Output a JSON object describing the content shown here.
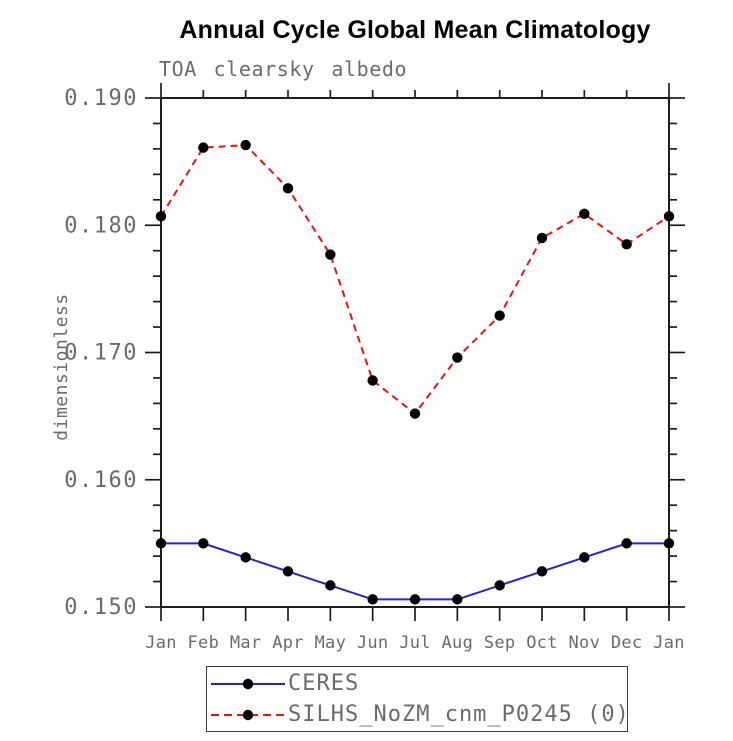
{
  "chart_data": {
    "type": "line",
    "title": "Annual Cycle Global Mean Climatology",
    "subtitle": "TOA clearsky albedo",
    "xlabel": "",
    "ylabel": "dimensionless",
    "categories": [
      "Jan",
      "Feb",
      "Mar",
      "Apr",
      "May",
      "Jun",
      "Jul",
      "Aug",
      "Sep",
      "Oct",
      "Nov",
      "Dec",
      "Jan"
    ],
    "ylim": [
      0.15,
      0.19
    ],
    "yticks": [
      0.15,
      0.16,
      0.17,
      0.18,
      0.19
    ],
    "ytick_labels": [
      "0.150",
      "0.160",
      "0.170",
      "0.180",
      "0.190"
    ],
    "yticks_minor": [
      0.152,
      0.154,
      0.156,
      0.158,
      0.162,
      0.164,
      0.166,
      0.168,
      0.172,
      0.174,
      0.176,
      0.178,
      0.182,
      0.184,
      0.186,
      0.188
    ],
    "grid": false,
    "legend_position": "bottom",
    "axis_color": "#1c1c1c",
    "label_color": "#6b6b6b",
    "series": [
      {
        "name": "CERES",
        "color": "#2222dd",
        "line_style": "solid",
        "marker": "circle",
        "marker_color": "#000000",
        "values": [
          0.155,
          0.155,
          0.1539,
          0.1528,
          0.1517,
          0.1506,
          0.1506,
          0.1506,
          0.1517,
          0.1528,
          0.1539,
          0.155,
          0.155
        ]
      },
      {
        "name": "SILHS_NoZM_cnm_P0245 (0)",
        "color": "#ee1111",
        "line_style": "dashed",
        "marker": "circle",
        "marker_color": "#000000",
        "values": [
          0.1807,
          0.1861,
          0.1863,
          0.1829,
          0.1777,
          0.1678,
          0.1652,
          0.1696,
          0.1729,
          0.179,
          0.1809,
          0.1785,
          0.1807
        ]
      }
    ]
  }
}
